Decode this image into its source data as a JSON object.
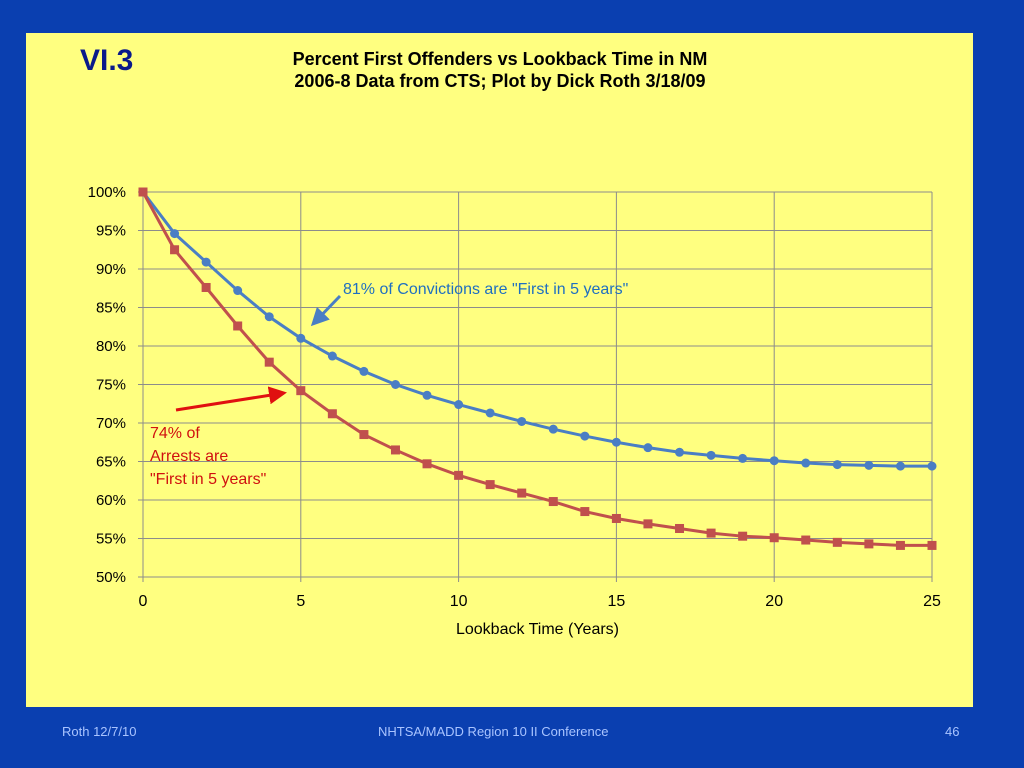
{
  "slide": {
    "id_label": "VI.3",
    "title_line1": "Percent First Offenders vs Lookback Time in NM",
    "title_line2": "2006-8 Data from CTS; Plot by Dick Roth 3/18/09"
  },
  "footer": {
    "left": "Roth 12/7/10",
    "center": "NHTSA/MADD Region 10 II Conference",
    "right": "46"
  },
  "annotations": {
    "convictions": "81%  of  Convictions are \"First in 5 years\"",
    "arrests_line1": "74% of",
    "arrests_line2": "Arrests are",
    "arrests_line3": "\"First in 5 years\""
  },
  "colors": {
    "background": "#0a3fb0",
    "panel": "#ffff80",
    "convictions_series": "#4a7ec4",
    "arrests_series": "#c0504d",
    "convictions_text": "#1f6fc1",
    "arrests_text": "#d01010",
    "arrow_red": "#e01010"
  },
  "chart_data": {
    "type": "line",
    "title": "Percent First Offenders vs Lookback Time in NM",
    "subtitle": "2006-8 Data from CTS; Plot by Dick Roth 3/18/09",
    "xlabel": "Lookback Time (Years)",
    "ylabel": "",
    "xlim": [
      0,
      25
    ],
    "ylim": [
      50,
      100
    ],
    "x_ticks": [
      0,
      5,
      10,
      15,
      20,
      25
    ],
    "y_ticks": [
      50,
      55,
      60,
      65,
      70,
      75,
      80,
      85,
      90,
      95,
      100
    ],
    "y_tick_labels": [
      "50%",
      "55%",
      "60%",
      "65%",
      "70%",
      "75%",
      "80%",
      "85%",
      "90%",
      "95%",
      "100%"
    ],
    "grid": true,
    "legend": "none",
    "x": [
      0,
      1,
      2,
      3,
      4,
      5,
      6,
      7,
      8,
      9,
      10,
      11,
      12,
      13,
      14,
      15,
      16,
      17,
      18,
      19,
      20,
      21,
      22,
      23,
      24,
      25
    ],
    "series": [
      {
        "marker": "circle",
        "color": "#4a7ec4",
        "values": [
          100,
          94.6,
          90.9,
          87.2,
          83.8,
          81.0,
          78.7,
          76.7,
          75.0,
          73.6,
          72.4,
          71.3,
          70.2,
          69.2,
          68.3,
          67.5,
          66.8,
          66.2,
          65.8,
          65.4,
          65.1,
          64.8,
          64.6,
          64.5,
          64.4,
          64.4
        ]
      },
      {
        "marker": "square",
        "color": "#c0504d",
        "values": [
          100,
          92.5,
          87.6,
          82.6,
          77.9,
          74.2,
          71.2,
          68.5,
          66.5,
          64.7,
          63.2,
          62.0,
          60.9,
          59.8,
          58.5,
          57.6,
          56.9,
          56.3,
          55.7,
          55.3,
          55.1,
          54.8,
          54.5,
          54.3,
          54.1,
          54.1
        ]
      }
    ]
  }
}
